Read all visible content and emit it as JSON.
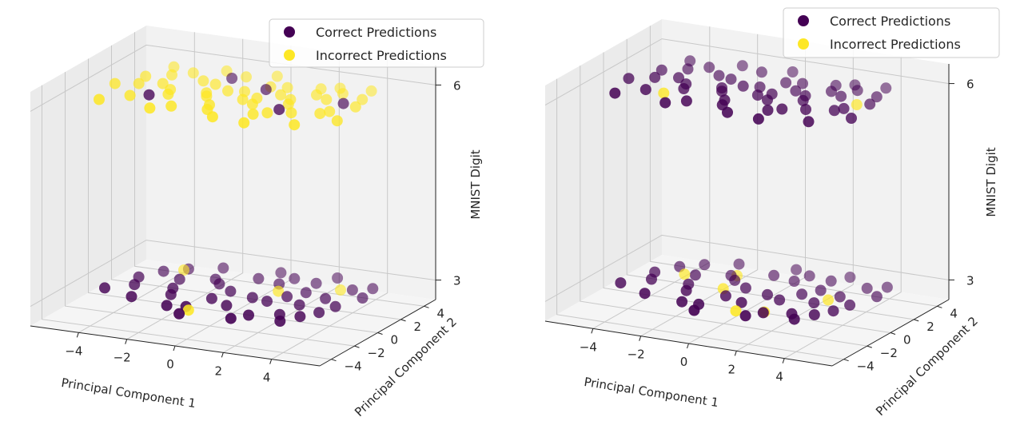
{
  "colors": {
    "correct": "#440154",
    "incorrect": "#fde725",
    "pane": "#f2f2f2",
    "grid": "#c8c8c8"
  },
  "chart_data": [
    {
      "type": "scatter",
      "projection": "3d",
      "grid": true,
      "legend_position": "top-right",
      "xlabel": "Principal Component 1",
      "ylabel": "Principal Component 2",
      "zlabel": "MNIST Digit",
      "xticks": [
        "−4",
        "−2",
        "0",
        "2",
        "4"
      ],
      "yticks": [
        "−4",
        "−2",
        "0",
        "2",
        "4"
      ],
      "zticks": [
        "3",
        "6"
      ],
      "xlim": [
        -6,
        6
      ],
      "ylim": [
        -5,
        5
      ],
      "zlim": [
        2.7,
        6.3
      ],
      "series": [
        {
          "name": "Correct Predictions",
          "color": "#440154",
          "points": [
            [
              -4.6,
              -1.5,
              3
            ],
            [
              -3.8,
              -0.6,
              3
            ],
            [
              -3.2,
              -2.1,
              3
            ],
            [
              -2.6,
              0.8,
              3
            ],
            [
              -2.0,
              -1.2,
              3
            ],
            [
              -1.4,
              1.4,
              3
            ],
            [
              -0.8,
              -2.4,
              3
            ],
            [
              -0.2,
              0.2,
              3
            ],
            [
              0.5,
              -1.6,
              3
            ],
            [
              1.0,
              1.9,
              3
            ],
            [
              1.6,
              -0.4,
              3
            ],
            [
              2.2,
              2.6,
              3
            ],
            [
              2.8,
              -1.8,
              3
            ],
            [
              3.4,
              0.9,
              3
            ],
            [
              4.0,
              -0.9,
              3
            ],
            [
              4.6,
              1.6,
              3
            ],
            [
              -1.8,
              2.9,
              3
            ],
            [
              0.4,
              3.3,
              3
            ],
            [
              2.6,
              3.6,
              3
            ],
            [
              -0.6,
              -3.4,
              3
            ],
            [
              1.4,
              -3.1,
              3
            ],
            [
              3.2,
              -2.6,
              3
            ],
            [
              -2.9,
              2.2,
              3
            ],
            [
              0.9,
              -0.2,
              3
            ],
            [
              2.0,
              0.5,
              3
            ],
            [
              3.8,
              2.4,
              3
            ],
            [
              -3.6,
              1.5,
              3
            ],
            [
              -1.0,
              0.9,
              3
            ],
            [
              1.8,
              -2.4,
              3
            ],
            [
              4.2,
              0.1,
              3
            ],
            [
              -2.3,
              -0.4,
              3
            ],
            [
              0.0,
              2.2,
              3
            ],
            [
              2.9,
              -0.3,
              3
            ],
            [
              -0.4,
              -1.0,
              3
            ],
            [
              3.6,
              -1.7,
              3
            ],
            [
              4.4,
              2.9,
              3
            ],
            [
              -4.1,
              0.4,
              3
            ],
            [
              1.2,
              2.8,
              3
            ],
            [
              -1.5,
              -2.6,
              3
            ],
            [
              2.4,
              1.3,
              3
            ],
            [
              -3.0,
              -1.0,
              6
            ],
            [
              0.6,
              1.6,
              6
            ],
            [
              2.2,
              -0.6,
              6
            ],
            [
              4.0,
              1.2,
              6
            ],
            [
              -1.2,
              2.4,
              6
            ]
          ]
        },
        {
          "name": "Incorrect Predictions",
          "color": "#fde725",
          "points": [
            [
              -3.0,
              2.0,
              3
            ],
            [
              -0.5,
              -2.8,
              3
            ],
            [
              1.4,
              1.0,
              3
            ],
            [
              3.4,
              2.2,
              3
            ],
            [
              -4.8,
              -0.2,
              6
            ],
            [
              -4.2,
              1.2,
              6
            ],
            [
              -3.6,
              -1.4,
              6
            ],
            [
              -3.2,
              0.6,
              6
            ],
            [
              -2.8,
              2.4,
              6
            ],
            [
              -2.4,
              -0.6,
              6
            ],
            [
              -2.0,
              1.6,
              6
            ],
            [
              -1.6,
              -2.0,
              6
            ],
            [
              -1.2,
              0.2,
              6
            ],
            [
              -0.8,
              2.8,
              6
            ],
            [
              -0.4,
              -1.2,
              6
            ],
            [
              0.0,
              1.0,
              6
            ],
            [
              0.4,
              -2.6,
              6
            ],
            [
              0.8,
              0.4,
              6
            ],
            [
              1.2,
              2.2,
              6
            ],
            [
              1.6,
              -1.6,
              6
            ],
            [
              2.0,
              0.8,
              6
            ],
            [
              2.4,
              2.6,
              6
            ],
            [
              2.8,
              -0.8,
              6
            ],
            [
              3.2,
              1.4,
              6
            ],
            [
              3.6,
              -2.2,
              6
            ],
            [
              4.0,
              0.0,
              6
            ],
            [
              4.4,
              2.0,
              6
            ],
            [
              4.8,
              -1.0,
              6
            ],
            [
              -3.8,
              2.8,
              6
            ],
            [
              -2.2,
              -2.6,
              6
            ],
            [
              -0.6,
              0.8,
              6
            ],
            [
              1.0,
              -0.4,
              6
            ],
            [
              2.6,
              1.8,
              6
            ],
            [
              4.2,
              3.2,
              6
            ],
            [
              -4.4,
              -2.4,
              6
            ],
            [
              -1.8,
              3.2,
              6
            ],
            [
              0.2,
              3.4,
              6
            ],
            [
              1.8,
              -2.8,
              6
            ],
            [
              3.0,
              3.0,
              6
            ],
            [
              -2.6,
              0.0,
              6
            ],
            [
              -1.0,
              -0.2,
              6
            ],
            [
              0.6,
              2.0,
              6
            ],
            [
              2.2,
              0.2,
              6
            ],
            [
              3.8,
              -0.4,
              6
            ],
            [
              -3.4,
              1.8,
              6
            ],
            [
              -0.2,
              -1.8,
              6
            ],
            [
              1.4,
              1.2,
              6
            ],
            [
              3.4,
              2.4,
              6
            ],
            [
              -4.0,
              0.2,
              6
            ],
            [
              -1.4,
              1.4,
              6
            ],
            [
              0.4,
              0.0,
              6
            ],
            [
              2.0,
              -1.2,
              6
            ],
            [
              4.6,
              1.0,
              6
            ]
          ]
        }
      ]
    },
    {
      "type": "scatter",
      "projection": "3d",
      "grid": true,
      "legend_position": "top-right",
      "xlabel": "Principal Component 1",
      "ylabel": "Principal Component 2",
      "zlabel": "MNIST Digit",
      "xticks": [
        "−4",
        "−2",
        "0",
        "2",
        "4"
      ],
      "yticks": [
        "−4",
        "−2",
        "0",
        "2",
        "4"
      ],
      "zticks": [
        "3",
        "6"
      ],
      "xlim": [
        -6,
        6
      ],
      "ylim": [
        -5,
        5
      ],
      "zlim": [
        2.7,
        6.3
      ],
      "series": [
        {
          "name": "Correct Predictions",
          "color": "#440154",
          "points": [
            [
              -4.6,
              -1.4,
              3
            ],
            [
              -3.8,
              -0.4,
              3
            ],
            [
              -3.2,
              -2.2,
              3
            ],
            [
              -2.6,
              0.9,
              3
            ],
            [
              -2.0,
              -1.1,
              3
            ],
            [
              -1.4,
              1.5,
              3
            ],
            [
              -0.8,
              -2.5,
              3
            ],
            [
              -0.2,
              0.3,
              3
            ],
            [
              0.5,
              -1.5,
              3
            ],
            [
              1.0,
              2.0,
              3
            ],
            [
              1.6,
              -0.5,
              3
            ],
            [
              2.2,
              2.7,
              3
            ],
            [
              2.8,
              -1.9,
              3
            ],
            [
              3.4,
              1.0,
              3
            ],
            [
              4.0,
              -0.8,
              3
            ],
            [
              4.6,
              1.7,
              3
            ],
            [
              -1.8,
              3.0,
              3
            ],
            [
              0.4,
              3.4,
              3
            ],
            [
              2.6,
              3.5,
              3
            ],
            [
              -0.6,
              -3.3,
              3
            ],
            [
              1.4,
              -3.0,
              3
            ],
            [
              3.2,
              -2.5,
              3
            ],
            [
              -2.9,
              2.3,
              3
            ],
            [
              0.9,
              -0.1,
              3
            ],
            [
              2.0,
              0.6,
              3
            ],
            [
              3.8,
              2.5,
              3
            ],
            [
              -3.6,
              1.6,
              3
            ],
            [
              -1.0,
              1.0,
              3
            ],
            [
              1.8,
              -2.3,
              3
            ],
            [
              4.2,
              0.2,
              3
            ],
            [
              -2.3,
              -0.3,
              3
            ],
            [
              0.0,
              2.3,
              3
            ],
            [
              2.9,
              -0.2,
              3
            ],
            [
              -0.4,
              -1.0,
              3
            ],
            [
              3.6,
              -1.6,
              3
            ],
            [
              4.4,
              3.0,
              3
            ],
            [
              -4.1,
              0.5,
              3
            ],
            [
              1.2,
              2.9,
              3
            ],
            [
              -1.5,
              -2.5,
              3
            ],
            [
              2.4,
              1.4,
              3
            ],
            [
              -4.8,
              -0.3,
              6
            ],
            [
              -4.2,
              1.3,
              6
            ],
            [
              -3.6,
              -1.3,
              6
            ],
            [
              -3.2,
              0.7,
              6
            ],
            [
              -2.8,
              2.5,
              6
            ],
            [
              -2.4,
              -0.5,
              6
            ],
            [
              -2.0,
              1.7,
              6
            ],
            [
              -1.6,
              -1.9,
              6
            ],
            [
              -1.2,
              0.3,
              6
            ],
            [
              -0.8,
              2.9,
              6
            ],
            [
              -0.4,
              -1.1,
              6
            ],
            [
              0.0,
              1.1,
              6
            ],
            [
              0.4,
              -2.5,
              6
            ],
            [
              0.8,
              0.5,
              6
            ],
            [
              1.2,
              2.3,
              6
            ],
            [
              1.6,
              -1.5,
              6
            ],
            [
              2.0,
              0.9,
              6
            ],
            [
              2.4,
              2.7,
              6
            ],
            [
              2.8,
              -0.7,
              6
            ],
            [
              3.2,
              1.5,
              6
            ],
            [
              3.6,
              -2.1,
              6
            ],
            [
              4.0,
              0.1,
              6
            ],
            [
              4.4,
              2.1,
              6
            ],
            [
              4.8,
              -0.9,
              6
            ],
            [
              -3.8,
              2.9,
              6
            ],
            [
              -2.2,
              -2.5,
              6
            ],
            [
              -0.6,
              0.9,
              6
            ],
            [
              1.0,
              -0.3,
              6
            ],
            [
              2.6,
              1.9,
              6
            ],
            [
              4.2,
              3.3,
              6
            ],
            [
              -4.4,
              -2.3,
              6
            ],
            [
              -1.8,
              3.3,
              6
            ],
            [
              0.2,
              3.5,
              6
            ],
            [
              1.8,
              -2.7,
              6
            ],
            [
              3.0,
              3.1,
              6
            ],
            [
              -2.6,
              0.1,
              6
            ],
            [
              -1.0,
              -0.1,
              6
            ],
            [
              0.6,
              2.1,
              6
            ],
            [
              2.2,
              0.3,
              6
            ],
            [
              3.8,
              -0.3,
              6
            ],
            [
              -3.4,
              1.9,
              6
            ],
            [
              -0.2,
              -1.7,
              6
            ],
            [
              1.4,
              1.3,
              6
            ],
            [
              3.4,
              2.5,
              6
            ],
            [
              -4.0,
              0.3,
              6
            ],
            [
              -1.4,
              1.5,
              6
            ],
            [
              0.4,
              0.1,
              6
            ],
            [
              2.0,
              -1.1,
              6
            ],
            [
              4.6,
              1.1,
              6
            ]
          ]
        },
        {
          "name": "Incorrect Predictions",
          "color": "#fde725",
          "points": [
            [
              -1.2,
              1.6,
              3
            ],
            [
              -0.9,
              -0.2,
              3
            ],
            [
              0.8,
              -2.6,
              3
            ],
            [
              1.8,
              -2.2,
              3
            ],
            [
              3.2,
              0.4,
              3
            ],
            [
              -3.0,
              0.8,
              3
            ],
            [
              -2.8,
              -1.4,
              6
            ],
            [
              4.2,
              0.8,
              6
            ]
          ]
        }
      ]
    }
  ]
}
